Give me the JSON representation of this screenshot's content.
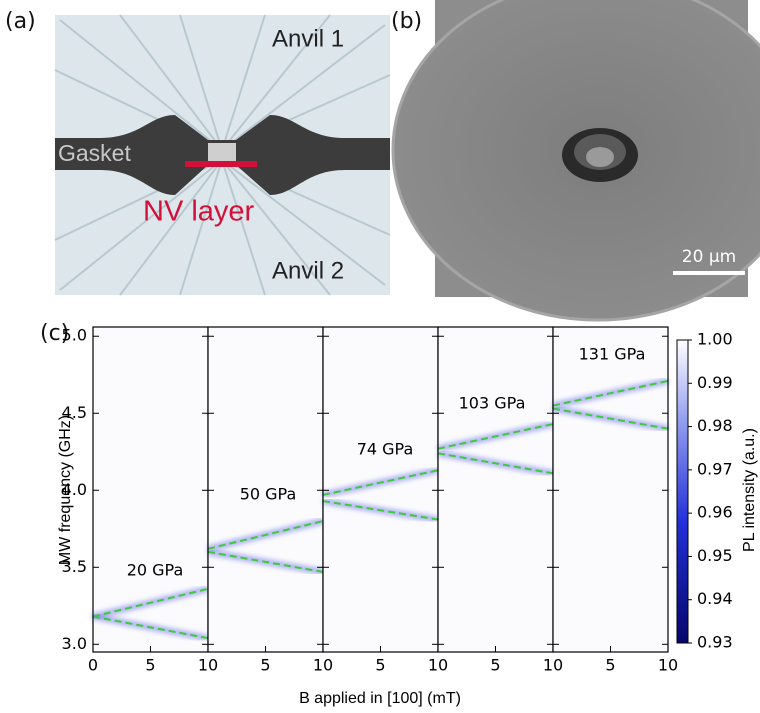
{
  "panel_labels": {
    "a": "(a)",
    "b": "(b)",
    "c": "(c)"
  },
  "diagram": {
    "anvil_top": "Anvil 1",
    "gasket": "Gasket",
    "layer": "NV layer",
    "anvil_bottom": "Anvil 2"
  },
  "micrograph": {
    "scale_bar": "20 μm"
  },
  "chart_data": [
    {
      "type": "line",
      "annotation": "20 GPa",
      "x": [
        0,
        10
      ],
      "xlim": [
        0,
        10
      ],
      "xticks": [
        0,
        5,
        10
      ],
      "ylim": [
        2.95,
        5.06
      ],
      "yticks": [
        {
          "value": 3,
          "label": "3.0"
        },
        3.5,
        {
          "value": 4,
          "label": "4.0"
        },
        4.5,
        {
          "value": 5,
          "label": "5.0"
        }
      ],
      "y_label": "MW frequency (GHz)",
      "x_label": "B applied in [100] (mT)",
      "colorbar": {
        "label": "PL intensity (a.u.)",
        "lim": [
          0.93,
          1.0
        ],
        "ticks": [
          {
            "value": 1,
            "label": "1.00"
          },
          0.99,
          0.98,
          0.97,
          0.96,
          0.95,
          0.94,
          0.93
        ]
      },
      "series": [
        {
          "color": "#3ec93e",
          "values": [
            3.18,
            3.36
          ]
        },
        {
          "color": "#3ec93e",
          "values": [
            3.18,
            3.04
          ]
        }
      ]
    },
    {
      "type": "line",
      "annotation": "50 GPa",
      "x": [
        0,
        10
      ],
      "xlim": [
        0,
        10
      ],
      "xticks": [
        5,
        10
      ],
      "series": [
        {
          "color": "#3ec93e",
          "values": [
            3.62,
            3.8
          ]
        },
        {
          "color": "#3ec93e",
          "values": [
            3.6,
            3.47
          ]
        }
      ]
    },
    {
      "type": "line",
      "annotation": "74 GPa",
      "x": [
        0,
        10
      ],
      "xlim": [
        0,
        10
      ],
      "xticks": [
        5,
        10
      ],
      "series": [
        {
          "color": "#3ec93e",
          "values": [
            3.97,
            4.13
          ]
        },
        {
          "color": "#3ec93e",
          "values": [
            3.93,
            3.81
          ]
        }
      ]
    },
    {
      "type": "line",
      "annotation": "103 GPa",
      "x": [
        0,
        10
      ],
      "xlim": [
        0,
        10
      ],
      "xticks": [
        5,
        10
      ],
      "series": [
        {
          "color": "#3ec93e",
          "values": [
            4.27,
            4.43
          ]
        },
        {
          "color": "#3ec93e",
          "values": [
            4.24,
            4.11
          ]
        }
      ]
    },
    {
      "type": "line",
      "annotation": "131 GPa",
      "x": [
        0,
        10
      ],
      "xlim": [
        0,
        10
      ],
      "xticks": [
        5,
        10
      ],
      "series": [
        {
          "color": "#3ec93e",
          "values": [
            4.55,
            4.71
          ]
        },
        {
          "color": "#3ec93e",
          "values": [
            4.53,
            4.4
          ]
        }
      ]
    }
  ]
}
